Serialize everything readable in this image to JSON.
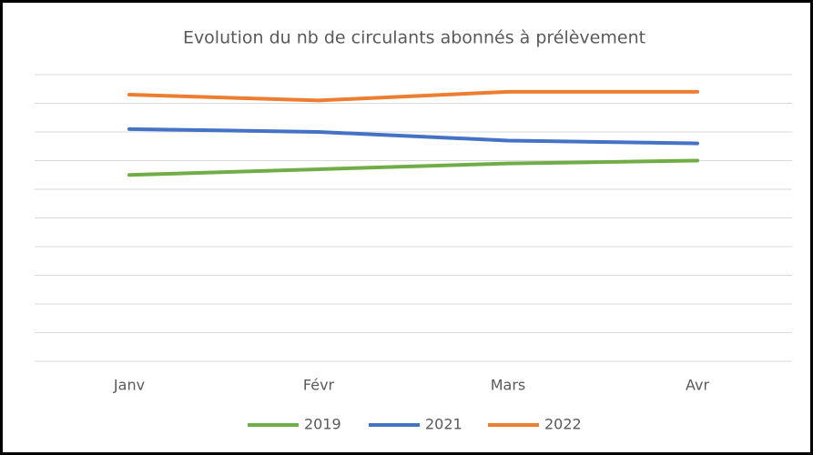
{
  "chart_data": {
    "type": "line",
    "title": "Evolution du nb de circulants abonnés à prélèvement",
    "categories": [
      "Janv",
      "Févr",
      "Mars",
      "Avr"
    ],
    "series": [
      {
        "name": "2019",
        "color": "#70ad47",
        "values": [
          6.5,
          6.7,
          6.9,
          7.0
        ]
      },
      {
        "name": "2021",
        "color": "#4472c4",
        "values": [
          8.1,
          8.0,
          7.7,
          7.6
        ]
      },
      {
        "name": "2022",
        "color": "#ed7d31",
        "values": [
          9.3,
          9.1,
          9.4,
          9.4
        ]
      }
    ],
    "ylim": [
      0,
      10
    ],
    "yticks": [
      0,
      1,
      2,
      3,
      4,
      5,
      6,
      7,
      8,
      9,
      10
    ],
    "grid": true,
    "legend": "bottom"
  }
}
